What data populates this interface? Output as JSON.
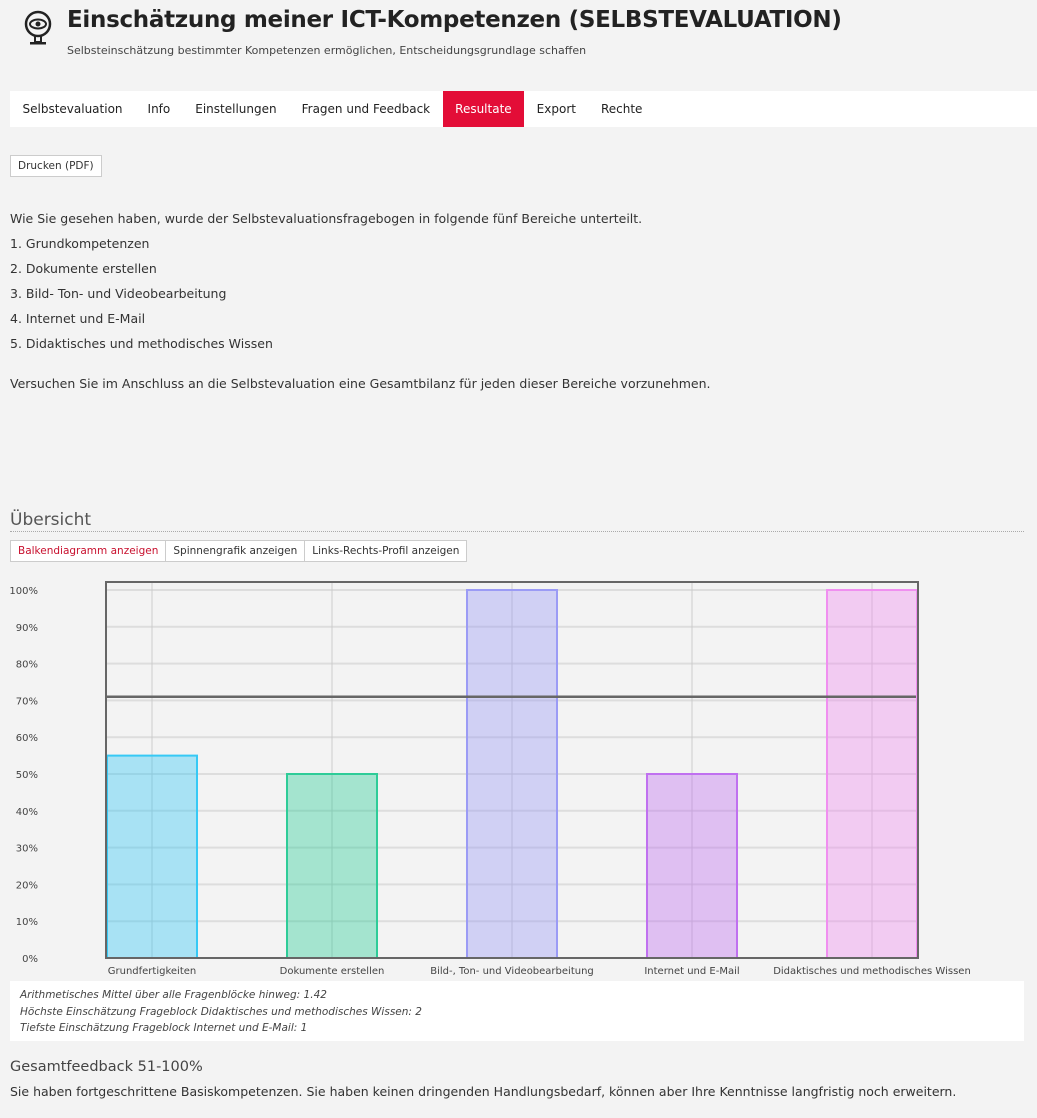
{
  "header": {
    "title": "Einschätzung meiner ICT-Kompetenzen (SELBSTEVALUATION)",
    "subtitle": "Selbsteinschätzung bestimmter Kompetenzen ermöglichen, Entscheidungsgrundlage schaffen",
    "icon": "webcam-icon"
  },
  "tabs": [
    {
      "label": "Selbstevaluation"
    },
    {
      "label": "Info"
    },
    {
      "label": "Einstellungen"
    },
    {
      "label": "Fragen und Feedback"
    },
    {
      "label": "Resultate",
      "active": true
    },
    {
      "label": "Export"
    },
    {
      "label": "Rechte"
    }
  ],
  "print_button": "Drucken (PDF)",
  "intro": {
    "lead": "Wie Sie gesehen haben, wurde der Selbstevaluationsfragebogen in folgende fünf Bereiche unterteilt.",
    "items": [
      "1. Grundkompetenzen",
      "2. Dokumente erstellen",
      "3. Bild- Ton- und Videobearbeitung",
      "4. Internet und E-Mail",
      "5. Didaktisches und methodisches Wissen"
    ],
    "closing": "Versuchen Sie im Anschluss an die Selbstevaluation eine Gesamtbilanz für jeden dieser Bereiche vorzunehmen."
  },
  "overview": {
    "title": "Übersicht",
    "view_tabs": [
      {
        "label": "Balkendiagramm anzeigen",
        "active": true
      },
      {
        "label": "Spinnengrafik anzeigen"
      },
      {
        "label": "Links-Rechts-Profil anzeigen"
      }
    ]
  },
  "chart_data": {
    "type": "bar",
    "categories": [
      "Grundfertigkeiten",
      "Dokumente erstellen",
      "Bild-, Ton- und Videobearbeitung",
      "Internet und E-Mail",
      "Didaktisches und methodisches Wissen"
    ],
    "values": [
      55,
      50,
      100,
      50,
      100
    ],
    "ylim": [
      0,
      100
    ],
    "yticks": [
      "0%",
      "10%",
      "20%",
      "30%",
      "40%",
      "50%",
      "60%",
      "70%",
      "80%",
      "90%",
      "100%"
    ],
    "reference_line": 71,
    "grid": true,
    "colors": [
      "#36c9f5",
      "#2ecc98",
      "#9b9bf5",
      "#c070f0",
      "#f08ff0"
    ]
  },
  "stats": [
    "Arithmetisches Mittel über alle Fragenblöcke hinweg: 1.42",
    "Höchste Einschätzung Frageblock Didaktisches und methodisches Wissen: 2",
    "Tiefste Einschätzung Frageblock Internet und E-Mail: 1"
  ],
  "feedback": {
    "title": "Gesamtfeedback 51-100%",
    "text": "Sie haben fortgeschrittene Basiskompetenzen. Sie haben keinen dringenden Handlungsbedarf, können aber Ihre Kenntnisse langfristig noch erweitern."
  }
}
